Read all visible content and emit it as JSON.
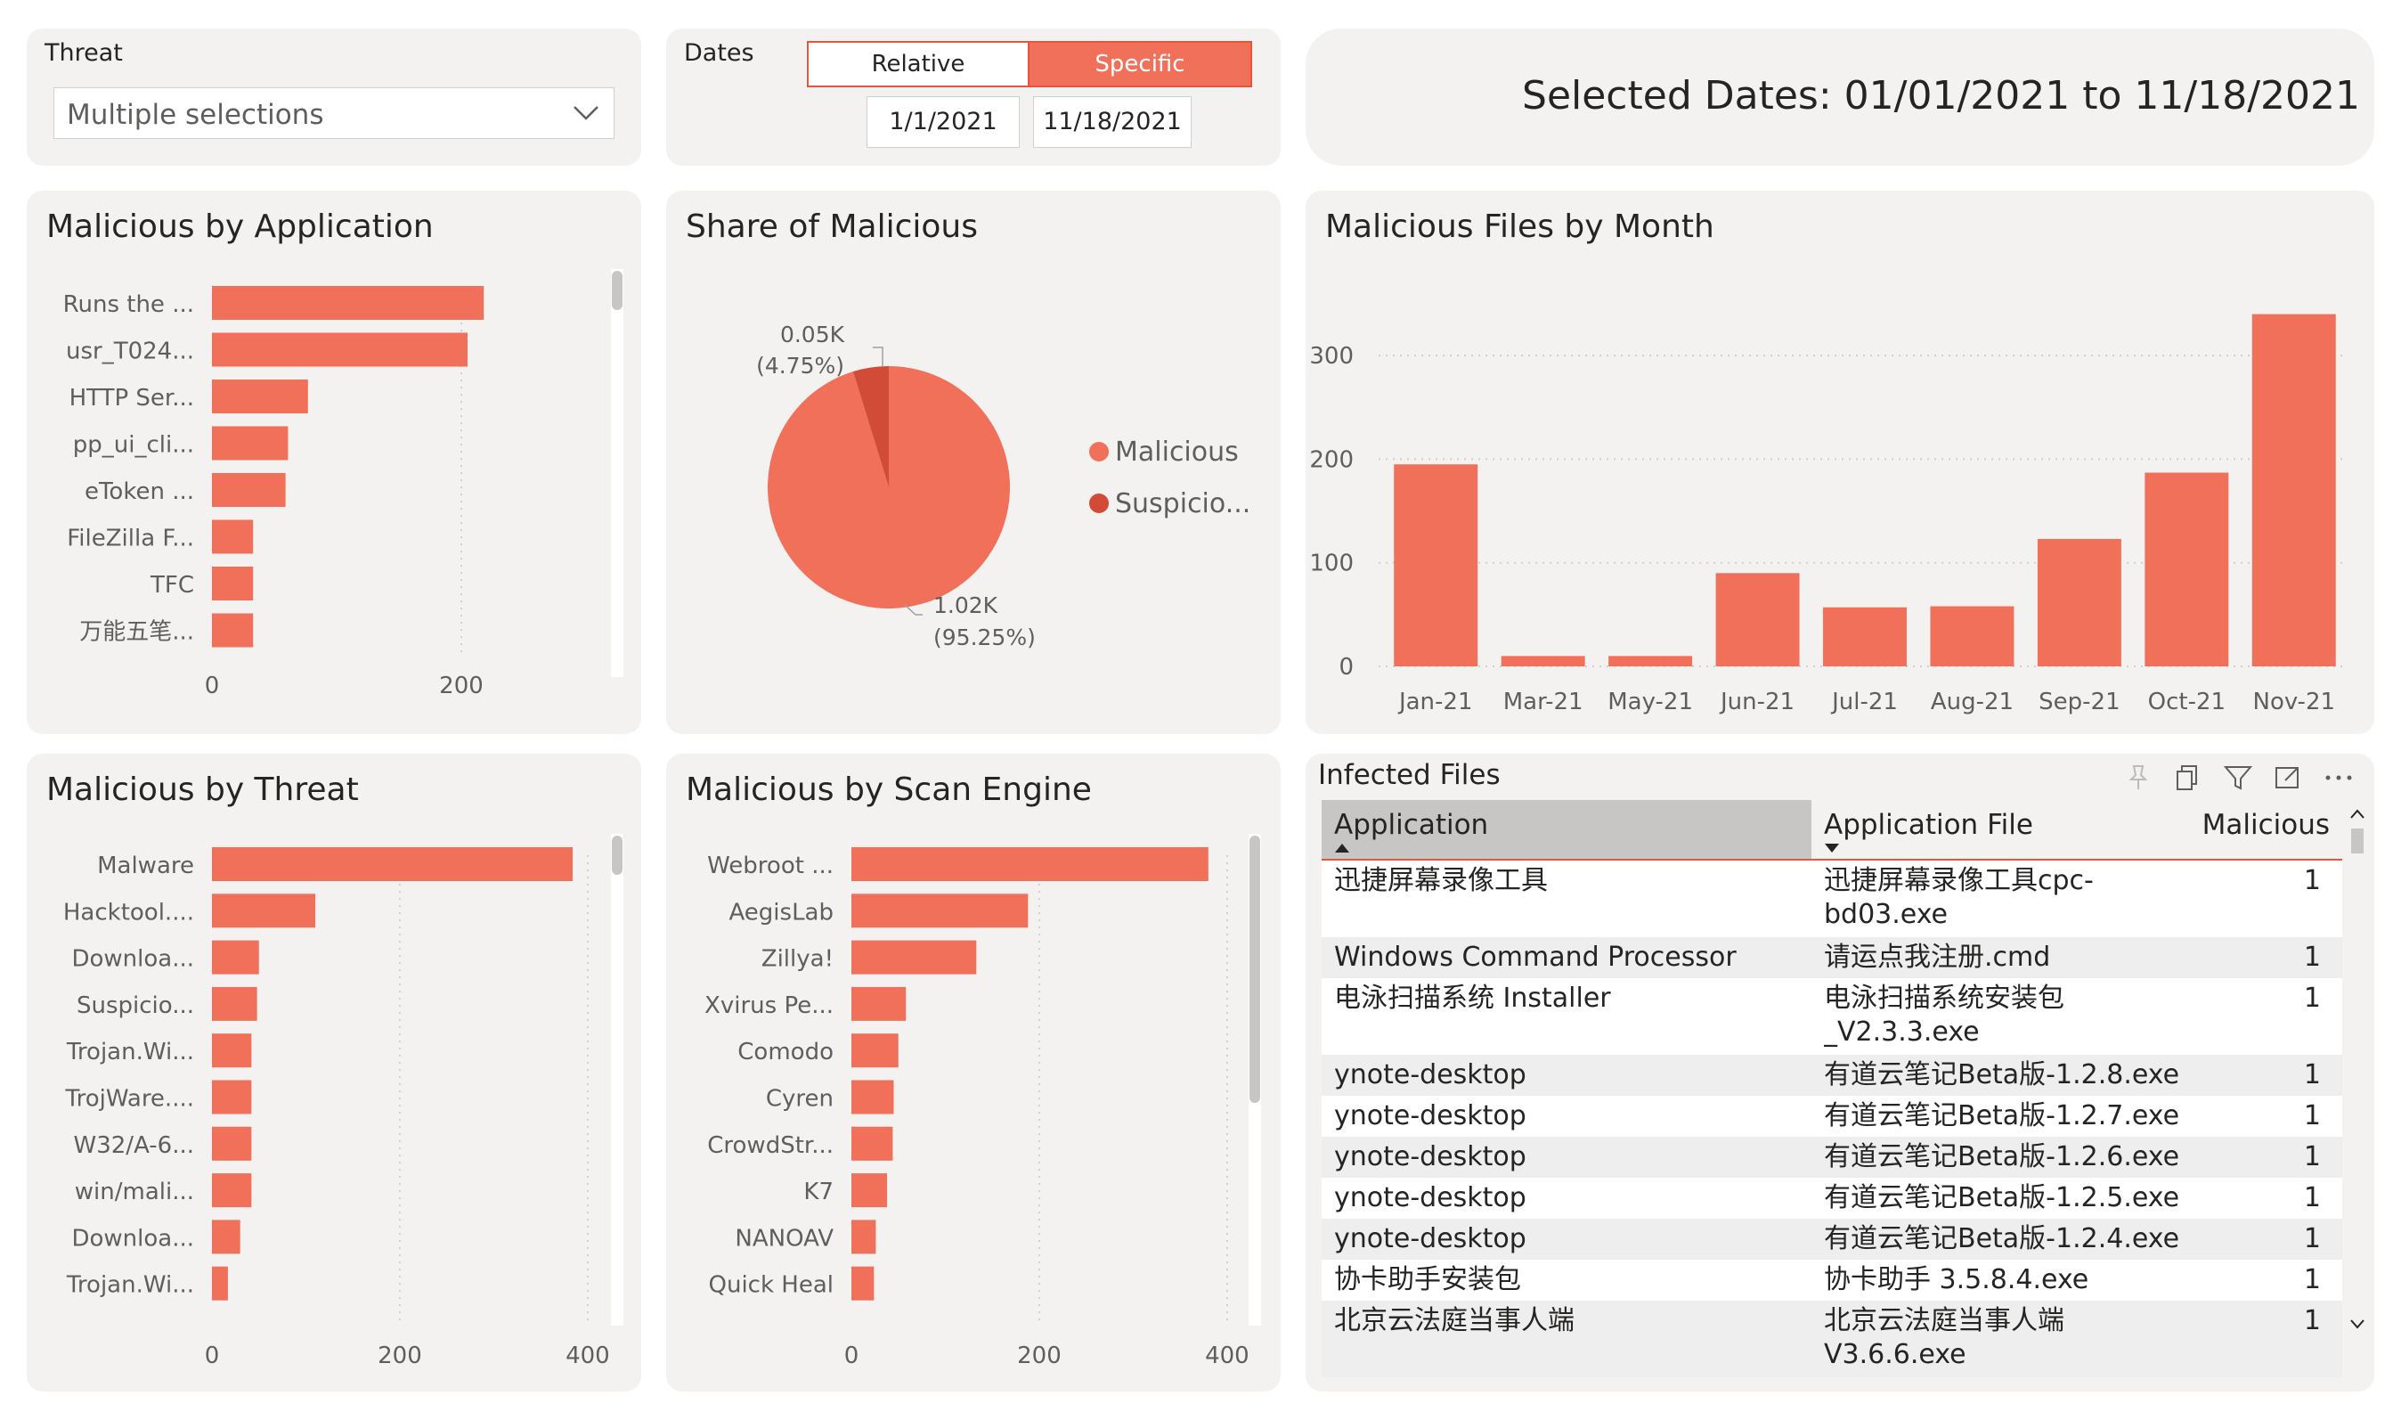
{
  "slicers": {
    "threat": {
      "label": "Threat",
      "value": "Multiple selections"
    },
    "dates": {
      "label": "Dates",
      "tab_relative": "Relative",
      "tab_specific": "Specific",
      "active_tab": "Specific",
      "start": "1/1/2021",
      "end": "11/18/2021"
    },
    "selected_dates_text": "Selected Dates: 01/01/2021 to 11/18/2021"
  },
  "colors": {
    "bar": "#f0705a",
    "bar_dark": "#d24b36",
    "card_bg": "#f3f2f1",
    "header_active": "#c8c6c4"
  },
  "chart_data": [
    {
      "id": "by_application",
      "type": "bar",
      "orientation": "horizontal",
      "title": "Malicious by Application",
      "categories": [
        "Runs the ...",
        "usr_T024...",
        "HTTP Ser...",
        "pp_ui_cli...",
        "eToken ...",
        "FileZilla F...",
        "TFC",
        "万能五笔..."
      ],
      "values": [
        218,
        205,
        77,
        61,
        59,
        33,
        33,
        33
      ],
      "xlim": [
        0,
        300
      ],
      "xticks": [
        0,
        200
      ],
      "grid": true
    },
    {
      "id": "share",
      "type": "pie",
      "title": "Share of Malicious",
      "series": [
        {
          "name": "Malicious",
          "value": 1020,
          "label": "1.02K",
          "pct": "(95.25%)",
          "color": "#f0705a"
        },
        {
          "name": "Suspicio...",
          "value": 51,
          "label": "0.05K",
          "pct": "(4.75%)",
          "color": "#d24b36"
        }
      ],
      "legend": "right"
    },
    {
      "id": "by_month",
      "type": "bar",
      "orientation": "vertical",
      "title": "Malicious Files by Month",
      "categories": [
        "Jan-21",
        "Mar-21",
        "May-21",
        "Jun-21",
        "Jul-21",
        "Aug-21",
        "Sep-21",
        "Oct-21",
        "Nov-21"
      ],
      "values": [
        195,
        10,
        10,
        90,
        57,
        58,
        123,
        187,
        340
      ],
      "ylim": [
        0,
        350
      ],
      "yticks": [
        0,
        100,
        200,
        300
      ],
      "grid": true
    },
    {
      "id": "by_threat",
      "type": "bar",
      "orientation": "horizontal",
      "title": "Malicious by Threat",
      "categories": [
        "Malware",
        "Hacktool....",
        "Downloa...",
        "Suspicio...",
        "Trojan.Wi...",
        "TrojWare....",
        "W32/A-6...",
        "win/mali...",
        "Downloa...",
        "Trojan.Wi..."
      ],
      "values": [
        384,
        110,
        50,
        48,
        42,
        42,
        42,
        42,
        30,
        17
      ],
      "xlim": [
        0,
        420
      ],
      "xticks": [
        0,
        200,
        400
      ],
      "grid": true
    },
    {
      "id": "by_scan_engine",
      "type": "bar",
      "orientation": "horizontal",
      "title": "Malicious by Scan Engine",
      "categories": [
        "Webroot ...",
        "AegisLab",
        "Zillya!",
        "Xvirus Pe...",
        "Comodo",
        "Cyren",
        "CrowdStr...",
        "K7",
        "NANOAV",
        "Quick Heal"
      ],
      "values": [
        380,
        188,
        133,
        58,
        50,
        45,
        44,
        38,
        26,
        24
      ],
      "xlim": [
        0,
        420
      ],
      "xticks": [
        0,
        200,
        400
      ],
      "grid": true
    }
  ],
  "infected_files": {
    "title": "Infected Files",
    "columns": [
      "Application",
      "Application File",
      "Malicious"
    ],
    "rows": [
      [
        "迅捷屏幕录像工具",
        "迅捷屏幕录像工具cpc-\nbd03.exe",
        "1"
      ],
      [
        "Windows Command Processor",
        "请运点我注册.cmd",
        "1"
      ],
      [
        "电泳扫描系统 Installer",
        "电泳扫描系统安装包\n_V2.3.3.exe",
        "1"
      ],
      [
        "ynote-desktop",
        "有道云笔记Beta版-1.2.8.exe",
        "1"
      ],
      [
        "ynote-desktop",
        "有道云笔记Beta版-1.2.7.exe",
        "1"
      ],
      [
        "ynote-desktop",
        "有道云笔记Beta版-1.2.6.exe",
        "1"
      ],
      [
        "ynote-desktop",
        "有道云笔记Beta版-1.2.5.exe",
        "1"
      ],
      [
        "ynote-desktop",
        "有道云笔记Beta版-1.2.4.exe",
        "1"
      ],
      [
        "协卡助手安装包",
        "协卡助手 3.5.8.4.exe",
        "1"
      ],
      [
        "北京云法庭当事人端",
        "北京云法庭当事人端\nV3.6.6.exe",
        "1"
      ]
    ],
    "toolbar_icons": [
      "pin-icon",
      "copy-icon",
      "filter-icon",
      "focus-mode-icon",
      "more-options-icon"
    ]
  }
}
